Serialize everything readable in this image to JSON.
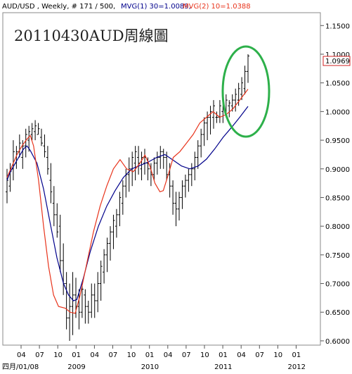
{
  "header": {
    "symbol_info": "AUD/USD , Weekly, # 171 / 500,",
    "mvg1_label": "MVG(1) 30=1.0089,",
    "mvg2_label": "MVG(2) 10=1.0388"
  },
  "annotation": {
    "title": "20110430AUD周線圖"
  },
  "price_label": "1.0969",
  "colors": {
    "price_bars": "#000000",
    "mvg1": "#00008b",
    "mvg2": "#e8341c",
    "circle": "#2db04a",
    "price_label_border": "#d02020",
    "price_label_text": "#1a1aa0",
    "grid": "#cfcfcf"
  },
  "chart_data": {
    "type": "bar",
    "style": "ohlc",
    "instrument": "AUD/USD",
    "timeframe": "Weekly",
    "ylim": [
      0.595,
      1.17
    ],
    "y_ticks": [
      "1.1500",
      "1.1000",
      "1.0500",
      "1.0000",
      "0.9500",
      "0.9000",
      "0.8500",
      "0.8000",
      "0.7500",
      "0.7000",
      "0.6500",
      "0.6000"
    ],
    "x_ticks": [
      {
        "label": "04",
        "year": null
      },
      {
        "label": "07",
        "year": null
      },
      {
        "label": "10",
        "year": null
      },
      {
        "label": "01",
        "year": "2009"
      },
      {
        "label": "04",
        "year": null
      },
      {
        "label": "07",
        "year": null
      },
      {
        "label": "10",
        "year": null
      },
      {
        "label": "01",
        "year": "2010"
      },
      {
        "label": "04",
        "year": null
      },
      {
        "label": "07",
        "year": null
      },
      {
        "label": "10",
        "year": null
      },
      {
        "label": "01",
        "year": "2011"
      },
      {
        "label": "04",
        "year": null
      },
      {
        "label": "07",
        "year": null
      },
      {
        "label": "10",
        "year": null
      },
      {
        "label": "01",
        "year": "2012"
      }
    ],
    "start_label": "四月/01/08",
    "series": [
      {
        "name": "MVG(1) 30",
        "value": 1.0089,
        "points": [
          [
            0.0,
            0.88
          ],
          [
            0.02,
            0.895
          ],
          [
            0.04,
            0.905
          ],
          [
            0.06,
            0.915
          ],
          [
            0.08,
            0.925
          ],
          [
            0.1,
            0.935
          ],
          [
            0.12,
            0.94
          ],
          [
            0.14,
            0.932
          ],
          [
            0.18,
            0.91
          ],
          [
            0.22,
            0.865
          ],
          [
            0.26,
            0.805
          ],
          [
            0.3,
            0.745
          ],
          [
            0.34,
            0.7
          ],
          [
            0.37,
            0.68
          ],
          [
            0.4,
            0.67
          ],
          [
            0.42,
            0.672
          ],
          [
            0.46,
            0.71
          ],
          [
            0.5,
            0.755
          ],
          [
            0.55,
            0.8
          ],
          [
            0.6,
            0.835
          ],
          [
            0.65,
            0.862
          ],
          [
            0.7,
            0.885
          ],
          [
            0.75,
            0.9
          ],
          [
            0.8,
            0.906
          ],
          [
            0.85,
            0.912
          ],
          [
            0.9,
            0.92
          ],
          [
            0.95,
            0.925
          ],
          [
            1.0,
            0.915
          ],
          [
            1.05,
            0.905
          ],
          [
            1.1,
            0.9
          ],
          [
            1.15,
            0.905
          ],
          [
            1.2,
            0.917
          ],
          [
            1.25,
            0.935
          ],
          [
            1.3,
            0.955
          ],
          [
            1.35,
            0.972
          ],
          [
            1.4,
            0.99
          ],
          [
            1.45,
            1.009
          ]
        ]
      },
      {
        "name": "MVG(2) 10",
        "value": 1.0388,
        "points": [
          [
            0.0,
            0.885
          ],
          [
            0.03,
            0.905
          ],
          [
            0.06,
            0.925
          ],
          [
            0.09,
            0.94
          ],
          [
            0.12,
            0.952
          ],
          [
            0.14,
            0.958
          ],
          [
            0.16,
            0.94
          ],
          [
            0.19,
            0.88
          ],
          [
            0.22,
            0.8
          ],
          [
            0.25,
            0.73
          ],
          [
            0.28,
            0.68
          ],
          [
            0.31,
            0.66
          ],
          [
            0.35,
            0.657
          ],
          [
            0.38,
            0.65
          ],
          [
            0.41,
            0.648
          ],
          [
            0.44,
            0.68
          ],
          [
            0.48,
            0.735
          ],
          [
            0.52,
            0.79
          ],
          [
            0.56,
            0.835
          ],
          [
            0.6,
            0.87
          ],
          [
            0.64,
            0.9
          ],
          [
            0.68,
            0.916
          ],
          [
            0.72,
            0.9
          ],
          [
            0.76,
            0.895
          ],
          [
            0.8,
            0.91
          ],
          [
            0.83,
            0.924
          ],
          [
            0.86,
            0.905
          ],
          [
            0.89,
            0.875
          ],
          [
            0.92,
            0.86
          ],
          [
            0.94,
            0.862
          ],
          [
            0.97,
            0.89
          ],
          [
            1.0,
            0.92
          ],
          [
            1.04,
            0.93
          ],
          [
            1.08,
            0.945
          ],
          [
            1.12,
            0.96
          ],
          [
            1.16,
            0.98
          ],
          [
            1.2,
            0.99
          ],
          [
            1.24,
            1.0
          ],
          [
            1.28,
            0.99
          ],
          [
            1.32,
            0.995
          ],
          [
            1.36,
            1.005
          ],
          [
            1.4,
            1.02
          ],
          [
            1.45,
            1.039
          ]
        ]
      }
    ],
    "ohlc": [
      [
        0.84,
        0.9,
        0.86,
        0.88
      ],
      [
        0.86,
        0.91,
        0.87,
        0.895
      ],
      [
        0.88,
        0.95,
        0.9,
        0.93
      ],
      [
        0.9,
        0.94,
        0.91,
        0.93
      ],
      [
        0.92,
        0.96,
        0.93,
        0.945
      ],
      [
        0.9,
        0.95,
        0.92,
        0.94
      ],
      [
        0.92,
        0.97,
        0.94,
        0.96
      ],
      [
        0.93,
        0.975,
        0.95,
        0.965
      ],
      [
        0.95,
        0.98,
        0.96,
        0.97
      ],
      [
        0.95,
        0.985,
        0.965,
        0.975
      ],
      [
        0.96,
        0.98,
        0.96,
        0.97
      ],
      [
        0.94,
        0.97,
        0.955,
        0.945
      ],
      [
        0.92,
        0.96,
        0.94,
        0.93
      ],
      [
        0.89,
        0.94,
        0.92,
        0.9
      ],
      [
        0.84,
        0.91,
        0.88,
        0.86
      ],
      [
        0.8,
        0.87,
        0.84,
        0.82
      ],
      [
        0.78,
        0.84,
        0.82,
        0.79
      ],
      [
        0.72,
        0.82,
        0.8,
        0.74
      ],
      [
        0.68,
        0.77,
        0.74,
        0.7
      ],
      [
        0.62,
        0.72,
        0.7,
        0.64
      ],
      [
        0.6,
        0.7,
        0.64,
        0.66
      ],
      [
        0.61,
        0.72,
        0.66,
        0.68
      ],
      [
        0.64,
        0.71,
        0.68,
        0.66
      ],
      [
        0.62,
        0.69,
        0.66,
        0.65
      ],
      [
        0.64,
        0.7,
        0.65,
        0.69
      ],
      [
        0.63,
        0.69,
        0.68,
        0.66
      ],
      [
        0.63,
        0.67,
        0.66,
        0.65
      ],
      [
        0.64,
        0.7,
        0.65,
        0.68
      ],
      [
        0.64,
        0.7,
        0.68,
        0.67
      ],
      [
        0.65,
        0.72,
        0.67,
        0.7
      ],
      [
        0.67,
        0.74,
        0.7,
        0.73
      ],
      [
        0.7,
        0.76,
        0.72,
        0.75
      ],
      [
        0.72,
        0.78,
        0.75,
        0.77
      ],
      [
        0.74,
        0.8,
        0.77,
        0.79
      ],
      [
        0.76,
        0.82,
        0.79,
        0.81
      ],
      [
        0.78,
        0.83,
        0.8,
        0.82
      ],
      [
        0.8,
        0.86,
        0.82,
        0.85
      ],
      [
        0.82,
        0.88,
        0.84,
        0.87
      ],
      [
        0.85,
        0.9,
        0.87,
        0.89
      ],
      [
        0.86,
        0.92,
        0.89,
        0.9
      ],
      [
        0.87,
        0.93,
        0.9,
        0.92
      ],
      [
        0.88,
        0.94,
        0.91,
        0.93
      ],
      [
        0.89,
        0.94,
        0.92,
        0.91
      ],
      [
        0.88,
        0.93,
        0.9,
        0.92
      ],
      [
        0.89,
        0.935,
        0.91,
        0.92
      ],
      [
        0.88,
        0.92,
        0.91,
        0.9
      ],
      [
        0.87,
        0.91,
        0.9,
        0.89
      ],
      [
        0.88,
        0.92,
        0.89,
        0.91
      ],
      [
        0.89,
        0.93,
        0.91,
        0.92
      ],
      [
        0.9,
        0.94,
        0.92,
        0.93
      ],
      [
        0.9,
        0.935,
        0.93,
        0.92
      ],
      [
        0.88,
        0.93,
        0.92,
        0.89
      ],
      [
        0.85,
        0.91,
        0.89,
        0.87
      ],
      [
        0.82,
        0.88,
        0.87,
        0.84
      ],
      [
        0.8,
        0.86,
        0.84,
        0.83
      ],
      [
        0.81,
        0.86,
        0.83,
        0.85
      ],
      [
        0.83,
        0.88,
        0.85,
        0.87
      ],
      [
        0.85,
        0.89,
        0.87,
        0.88
      ],
      [
        0.86,
        0.9,
        0.88,
        0.89
      ],
      [
        0.87,
        0.91,
        0.89,
        0.9
      ],
      [
        0.88,
        0.93,
        0.9,
        0.92
      ],
      [
        0.9,
        0.95,
        0.92,
        0.94
      ],
      [
        0.92,
        0.97,
        0.94,
        0.96
      ],
      [
        0.94,
        0.99,
        0.96,
        0.98
      ],
      [
        0.95,
        1.0,
        0.98,
        0.99
      ],
      [
        0.96,
        1.01,
        0.99,
        1.0
      ],
      [
        0.97,
        1.02,
        0.99,
        1.01
      ],
      [
        0.98,
        1.0,
        0.99,
        0.99
      ],
      [
        0.98,
        1.02,
        0.99,
        1.01
      ],
      [
        0.98,
        1.02,
        1.0,
        1.01
      ],
      [
        0.99,
        1.03,
        1.0,
        1.02
      ],
      [
        0.99,
        1.02,
        1.01,
        1.015
      ],
      [
        1.0,
        1.03,
        1.01,
        1.02
      ],
      [
        1.0,
        1.04,
        1.02,
        1.03
      ],
      [
        1.01,
        1.05,
        1.02,
        1.04
      ],
      [
        1.02,
        1.06,
        1.03,
        1.05
      ],
      [
        1.03,
        1.08,
        1.04,
        1.07
      ],
      [
        1.05,
        1.1,
        1.07,
        1.0969
      ]
    ]
  }
}
